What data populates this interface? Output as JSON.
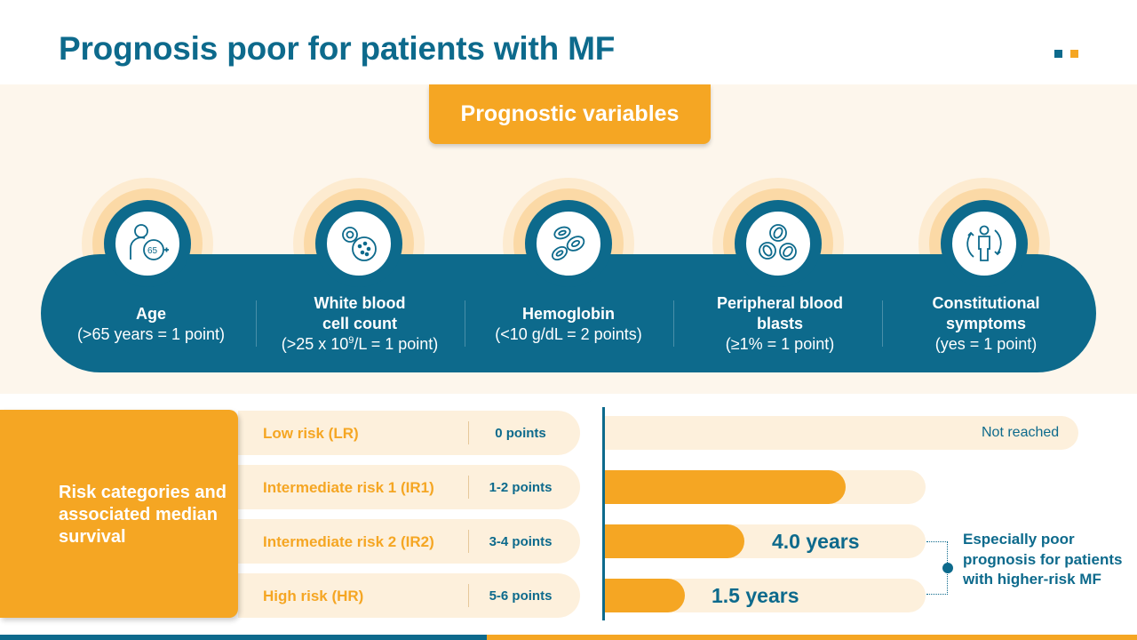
{
  "title": "Prognosis poor for patients with MF",
  "colors": {
    "primary_blue": "#0d6a8c",
    "accent_orange": "#f5a623",
    "light_cream": "#fdf6ec",
    "light_peach": "#fdf0dc"
  },
  "variables_header": "Prognostic variables",
  "variables": [
    {
      "icon": "age-65-icon",
      "name": "Age",
      "criterion": "(>65 years = 1 point)"
    },
    {
      "icon": "white-blood-cell-icon",
      "name_line1": "White blood",
      "name_line2": "cell count",
      "criterion_pre": "(>25 x 10",
      "criterion_sup": "9",
      "criterion_post": "/L = 1 point)"
    },
    {
      "icon": "red-blood-cells-icon",
      "name": "Hemoglobin",
      "criterion": "(<10 g/dL = 2 points)"
    },
    {
      "icon": "blood-blasts-icon",
      "name_line1": "Peripheral blood",
      "name_line2": "blasts",
      "criterion": "(≥1% = 1 point)"
    },
    {
      "icon": "constitutional-symptoms-icon",
      "name_line1": "Constitutional",
      "name_line2": "symptoms",
      "criterion": "(yes = 1 point)"
    }
  ],
  "risk_box_label": "Risk categories and associated median survival",
  "risk_categories": [
    {
      "label": "Low risk (LR)",
      "points": "0 points"
    },
    {
      "label": "Intermediate risk 1 (IR1)",
      "points": "1-2 points"
    },
    {
      "label": "Intermediate risk 2 (IR2)",
      "points": "3-4 points"
    },
    {
      "label": "High risk (HR)",
      "points": "5-6 points"
    }
  ],
  "survival": {
    "not_reached": "Not reached",
    "ir1_fill_fraction": 0.75,
    "ir2_label": "4.0 years",
    "hr_label": "1.5 years"
  },
  "callout": "Especially poor prognosis for patients with higher-risk MF"
}
